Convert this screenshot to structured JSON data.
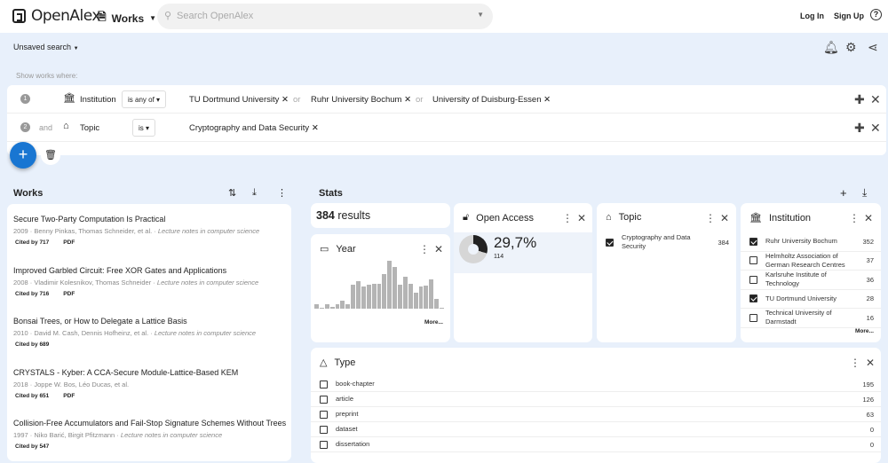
{
  "header": {
    "logo": "OpenAlex",
    "entity": "Works",
    "search_placeholder": "Search OpenAlex",
    "login": "Log In",
    "signup": "Sign Up",
    "help": "?"
  },
  "toolbar": {
    "unsaved": "Unsaved search"
  },
  "filters": {
    "intro": "Show works where:",
    "rows": [
      {
        "num": "1",
        "conj": "",
        "field": "Institution",
        "op": "is any of",
        "values": [
          "TU Dortmund University",
          "Ruhr University Bochum",
          "University of Duisburg-Essen"
        ],
        "sep": "or"
      },
      {
        "num": "2",
        "conj": "and",
        "field": "Topic",
        "op": "is",
        "values": [
          "Cryptography and Data Security"
        ],
        "sep": "or"
      }
    ]
  },
  "works": {
    "title": "Works",
    "items": [
      {
        "title": "Secure Two-Party Computation Is Practical",
        "year": "2009",
        "authors": "Benny Pinkas, Thomas Schneider, et al.",
        "venue": "Lecture notes in computer science",
        "cited": "Cited by 717",
        "pdf": "PDF"
      },
      {
        "title": "Improved Garbled Circuit: Free XOR Gates and Applications",
        "year": "2008",
        "authors": "Vladimir Kolesnikov, Thomas Schneider",
        "venue": "Lecture notes in computer science",
        "cited": "Cited by 716",
        "pdf": "PDF"
      },
      {
        "title": "Bonsai Trees, or How to Delegate a Lattice Basis",
        "year": "2010",
        "authors": "David M. Cash, Dennis Hofheinz, et al.",
        "venue": "Lecture notes in computer science",
        "cited": "Cited by 689",
        "pdf": ""
      },
      {
        "title": "CRYSTALS - Kyber: A CCA-Secure Module-Lattice-Based KEM",
        "year": "2018",
        "authors": "Joppe W. Bos, Léo Ducas, et al.",
        "venue": "",
        "cited": "Cited by 651",
        "pdf": "PDF"
      },
      {
        "title": "Collision-Free Accumulators and Fail-Stop Signature Schemes Without Trees",
        "year": "1997",
        "authors": "Niko Barić, Birgit Pfitzmann",
        "venue": "Lecture notes in computer science",
        "cited": "Cited by 547",
        "pdf": ""
      }
    ]
  },
  "stats": {
    "title": "Stats",
    "results_count": "384",
    "results_label": "results",
    "year": {
      "title": "Year",
      "more": "More...",
      "histogram": [
        4,
        1,
        4,
        2,
        4,
        7,
        4,
        22,
        25,
        20,
        22,
        23,
        23,
        32,
        44,
        38,
        22,
        29,
        23,
        15,
        20,
        21,
        27,
        9,
        1
      ]
    },
    "open_access": {
      "title": "Open Access",
      "percent": "29,7%",
      "count": "114",
      "fraction": 0.297
    },
    "topic": {
      "title": "Topic",
      "items": [
        {
          "label": "Cryptography and Data Security",
          "count": "384",
          "checked": true
        }
      ]
    },
    "institution": {
      "title": "Institution",
      "more": "More...",
      "items": [
        {
          "label": "Ruhr University Bochum",
          "count": "352",
          "checked": true
        },
        {
          "label": "Helmholtz Association of German Research Centres",
          "count": "37",
          "checked": false
        },
        {
          "label": "Karlsruhe Institute of Technology",
          "count": "36",
          "checked": false
        },
        {
          "label": "TU Dortmund University",
          "count": "28",
          "checked": true
        },
        {
          "label": "Technical University of Darmstadt",
          "count": "16",
          "checked": false
        }
      ]
    },
    "type": {
      "title": "Type",
      "items": [
        {
          "label": "book-chapter",
          "count": "195",
          "checked": false
        },
        {
          "label": "article",
          "count": "126",
          "checked": false
        },
        {
          "label": "preprint",
          "count": "63",
          "checked": false
        },
        {
          "label": "dataset",
          "count": "0",
          "checked": false
        },
        {
          "label": "dissertation",
          "count": "0",
          "checked": false
        }
      ]
    }
  },
  "colors": {
    "accent": "#1976d2",
    "background": "#e8f0fb",
    "bar": "#b4b4b4",
    "oa": "#222222"
  }
}
